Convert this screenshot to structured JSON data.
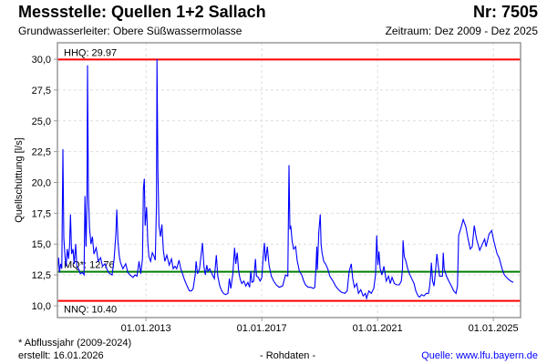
{
  "header": {
    "title": "Messstelle: Quellen 1+2 Sallach",
    "number": "Nr: 7505",
    "aquifer": "Grundwasserleiter:   Obere Süßwassermolasse",
    "period": "Zeitraum: Dez 2009 - Dez 2025"
  },
  "footer": {
    "note": "* Abflussjahr (2009-2024)",
    "created": "erstellt:  16.01.2026",
    "raw": "- Rohdaten -",
    "source": "Quelle: www.lfu.bayern.de"
  },
  "chart_data": {
    "type": "line",
    "title": "Messstelle: Quellen 1+2 Sallach",
    "xlabel": "",
    "ylabel": "Quellschüttung [l/s]",
    "xlim": [
      2009.94,
      2025.94
    ],
    "ylim": [
      9.04,
      31.33
    ],
    "grid": true,
    "x_ticks": [
      {
        "value": 2013.0,
        "label": "01.01.2013"
      },
      {
        "value": 2017.0,
        "label": "01.01.2017"
      },
      {
        "value": 2021.0,
        "label": "01.01.2021"
      },
      {
        "value": 2025.0,
        "label": "01.01.2025"
      }
    ],
    "y_ticks": [
      {
        "value": 10,
        "label": "10,0"
      },
      {
        "value": 12.5,
        "label": "12,5"
      },
      {
        "value": 15,
        "label": "15,0"
      },
      {
        "value": 17.5,
        "label": "17,5"
      },
      {
        "value": 20,
        "label": "20,0"
      },
      {
        "value": 22.5,
        "label": "22,5"
      },
      {
        "value": 25,
        "label": "25,0"
      },
      {
        "value": 27.5,
        "label": "27,5"
      },
      {
        "value": 30,
        "label": "30,0"
      }
    ],
    "reference_lines": [
      {
        "name": "HHQ",
        "label": "HHQ: 29.97",
        "value": 29.97,
        "color": "#ff0000"
      },
      {
        "name": "MQ",
        "label": "MQ*: 12.76",
        "value": 12.76,
        "color": "#008000"
      },
      {
        "name": "NNQ",
        "label": "NNQ: 10.40",
        "value": 10.4,
        "color": "#ff0000"
      }
    ],
    "series": [
      {
        "name": "Quellschüttung",
        "color": "#0000ff",
        "points": [
          [
            2009.94,
            13.0
          ],
          [
            2009.98,
            13.9
          ],
          [
            2010.01,
            12.7
          ],
          [
            2010.05,
            13.4
          ],
          [
            2010.09,
            13.0
          ],
          [
            2010.13,
            22.7
          ],
          [
            2010.16,
            15.5
          ],
          [
            2010.2,
            14.0
          ],
          [
            2010.24,
            13.2
          ],
          [
            2010.28,
            14.6
          ],
          [
            2010.32,
            13.8
          ],
          [
            2010.36,
            14.8
          ],
          [
            2010.39,
            17.4
          ],
          [
            2010.43,
            14.2
          ],
          [
            2010.48,
            14.6
          ],
          [
            2010.52,
            13.4
          ],
          [
            2010.57,
            15.0
          ],
          [
            2010.61,
            13.2
          ],
          [
            2010.67,
            13.0
          ],
          [
            2010.73,
            12.6
          ],
          [
            2010.8,
            12.7
          ],
          [
            2010.86,
            12.5
          ],
          [
            2010.89,
            18.9
          ],
          [
            2010.93,
            14.8
          ],
          [
            2010.96,
            18.5
          ],
          [
            2010.98,
            29.5
          ],
          [
            2011.01,
            19.0
          ],
          [
            2011.05,
            16.3
          ],
          [
            2011.1,
            15.0
          ],
          [
            2011.15,
            15.6
          ],
          [
            2011.2,
            14.2
          ],
          [
            2011.28,
            14.7
          ],
          [
            2011.35,
            13.6
          ],
          [
            2011.43,
            13.9
          ],
          [
            2011.5,
            13.2
          ],
          [
            2011.58,
            13.4
          ],
          [
            2011.68,
            12.8
          ],
          [
            2011.75,
            12.6
          ],
          [
            2011.83,
            12.5
          ],
          [
            2011.9,
            13.8
          ],
          [
            2011.96,
            15.8
          ],
          [
            2011.99,
            17.8
          ],
          [
            2012.03,
            15.2
          ],
          [
            2012.08,
            14.0
          ],
          [
            2012.12,
            13.5
          ],
          [
            2012.2,
            13.0
          ],
          [
            2012.3,
            13.4
          ],
          [
            2012.37,
            12.7
          ],
          [
            2012.45,
            12.5
          ],
          [
            2012.55,
            12.3
          ],
          [
            2012.62,
            12.5
          ],
          [
            2012.69,
            12.4
          ],
          [
            2012.76,
            13.6
          ],
          [
            2012.82,
            12.6
          ],
          [
            2012.88,
            13.8
          ],
          [
            2012.91,
            19.5
          ],
          [
            2012.94,
            20.3
          ],
          [
            2012.97,
            16.5
          ],
          [
            2013.02,
            18.0
          ],
          [
            2013.06,
            15.2
          ],
          [
            2013.1,
            14.0
          ],
          [
            2013.16,
            13.6
          ],
          [
            2013.22,
            14.3
          ],
          [
            2013.28,
            14.0
          ],
          [
            2013.32,
            13.7
          ],
          [
            2013.36,
            18.0
          ],
          [
            2013.38,
            30.0
          ],
          [
            2013.41,
            21.0
          ],
          [
            2013.45,
            16.5
          ],
          [
            2013.5,
            15.6
          ],
          [
            2013.55,
            16.6
          ],
          [
            2013.6,
            14.5
          ],
          [
            2013.65,
            13.6
          ],
          [
            2013.72,
            14.1
          ],
          [
            2013.8,
            13.3
          ],
          [
            2013.88,
            13.8
          ],
          [
            2013.94,
            13.0
          ],
          [
            2014.0,
            13.2
          ],
          [
            2014.06,
            13.0
          ],
          [
            2014.14,
            13.7
          ],
          [
            2014.2,
            13.0
          ],
          [
            2014.26,
            12.6
          ],
          [
            2014.33,
            12.1
          ],
          [
            2014.42,
            11.6
          ],
          [
            2014.5,
            11.2
          ],
          [
            2014.57,
            11.2
          ],
          [
            2014.63,
            11.4
          ],
          [
            2014.7,
            12.5
          ],
          [
            2014.73,
            13.6
          ],
          [
            2014.78,
            12.6
          ],
          [
            2014.85,
            13.0
          ],
          [
            2014.95,
            15.1
          ],
          [
            2015.0,
            13.2
          ],
          [
            2015.05,
            12.5
          ],
          [
            2015.1,
            13.3
          ],
          [
            2015.14,
            12.8
          ],
          [
            2015.2,
            13.0
          ],
          [
            2015.28,
            12.6
          ],
          [
            2015.36,
            12.2
          ],
          [
            2015.43,
            14.1
          ],
          [
            2015.48,
            12.4
          ],
          [
            2015.55,
            11.6
          ],
          [
            2015.62,
            11.2
          ],
          [
            2015.68,
            11.0
          ],
          [
            2015.75,
            10.9
          ],
          [
            2015.83,
            11.0
          ],
          [
            2015.88,
            12.2
          ],
          [
            2015.93,
            11.4
          ],
          [
            2016.0,
            12.6
          ],
          [
            2016.06,
            14.7
          ],
          [
            2016.1,
            13.4
          ],
          [
            2016.15,
            14.3
          ],
          [
            2016.2,
            12.8
          ],
          [
            2016.25,
            12.2
          ],
          [
            2016.31,
            11.8
          ],
          [
            2016.38,
            12.0
          ],
          [
            2016.45,
            11.6
          ],
          [
            2016.52,
            11.9
          ],
          [
            2016.58,
            11.5
          ],
          [
            2016.62,
            12.8
          ],
          [
            2016.66,
            11.9
          ],
          [
            2016.72,
            12.0
          ],
          [
            2016.78,
            13.8
          ],
          [
            2016.82,
            12.4
          ],
          [
            2016.88,
            12.3
          ],
          [
            2016.94,
            12.0
          ],
          [
            2017.0,
            12.3
          ],
          [
            2017.05,
            14.0
          ],
          [
            2017.09,
            15.1
          ],
          [
            2017.13,
            13.6
          ],
          [
            2017.19,
            14.8
          ],
          [
            2017.25,
            13.3
          ],
          [
            2017.33,
            12.4
          ],
          [
            2017.41,
            12.0
          ],
          [
            2017.5,
            11.7
          ],
          [
            2017.6,
            11.5
          ],
          [
            2017.72,
            11.6
          ],
          [
            2017.82,
            12.5
          ],
          [
            2017.9,
            12.4
          ],
          [
            2017.94,
            21.4
          ],
          [
            2017.97,
            16.2
          ],
          [
            2018.0,
            16.5
          ],
          [
            2018.05,
            15.2
          ],
          [
            2018.1,
            14.6
          ],
          [
            2018.17,
            14.8
          ],
          [
            2018.22,
            13.7
          ],
          [
            2018.3,
            12.8
          ],
          [
            2018.38,
            12.5
          ],
          [
            2018.45,
            12.0
          ],
          [
            2018.51,
            11.7
          ],
          [
            2018.6,
            11.5
          ],
          [
            2018.7,
            11.5
          ],
          [
            2018.78,
            11.4
          ],
          [
            2018.83,
            11.5
          ],
          [
            2018.87,
            13.0
          ],
          [
            2018.9,
            14.8
          ],
          [
            2018.92,
            12.9
          ],
          [
            2018.97,
            16.0
          ],
          [
            2019.02,
            17.4
          ],
          [
            2019.05,
            15.0
          ],
          [
            2019.08,
            14.3
          ],
          [
            2019.14,
            13.6
          ],
          [
            2019.2,
            13.4
          ],
          [
            2019.28,
            13.0
          ],
          [
            2019.35,
            12.4
          ],
          [
            2019.46,
            12.0
          ],
          [
            2019.55,
            11.6
          ],
          [
            2019.65,
            11.3
          ],
          [
            2019.75,
            11.1
          ],
          [
            2019.87,
            11.0
          ],
          [
            2019.95,
            11.2
          ],
          [
            2020.02,
            12.8
          ],
          [
            2020.09,
            13.4
          ],
          [
            2020.14,
            12.2
          ],
          [
            2020.2,
            11.5
          ],
          [
            2020.28,
            11.8
          ],
          [
            2020.34,
            11.0
          ],
          [
            2020.42,
            11.3
          ],
          [
            2020.5,
            10.8
          ],
          [
            2020.58,
            11.0
          ],
          [
            2020.62,
            10.6
          ],
          [
            2020.7,
            11.2
          ],
          [
            2020.78,
            11.0
          ],
          [
            2020.87,
            11.4
          ],
          [
            2020.93,
            12.5
          ],
          [
            2020.97,
            15.7
          ],
          [
            2021.01,
            13.3
          ],
          [
            2021.05,
            14.4
          ],
          [
            2021.09,
            13.0
          ],
          [
            2021.15,
            12.5
          ],
          [
            2021.22,
            13.2
          ],
          [
            2021.3,
            12.0
          ],
          [
            2021.38,
            12.4
          ],
          [
            2021.44,
            11.8
          ],
          [
            2021.5,
            12.3
          ],
          [
            2021.58,
            11.8
          ],
          [
            2021.66,
            11.7
          ],
          [
            2021.75,
            11.7
          ],
          [
            2021.82,
            12.0
          ],
          [
            2021.86,
            13.0
          ],
          [
            2021.88,
            15.3
          ],
          [
            2021.92,
            14.0
          ],
          [
            2021.98,
            13.6
          ],
          [
            2022.04,
            13.0
          ],
          [
            2022.1,
            12.6
          ],
          [
            2022.18,
            12.2
          ],
          [
            2022.26,
            11.8
          ],
          [
            2022.32,
            11.2
          ],
          [
            2022.4,
            10.8
          ],
          [
            2022.45,
            10.7
          ],
          [
            2022.52,
            10.9
          ],
          [
            2022.6,
            10.8
          ],
          [
            2022.68,
            11.0
          ],
          [
            2022.76,
            11.0
          ],
          [
            2022.8,
            11.6
          ],
          [
            2022.83,
            12.4
          ],
          [
            2022.86,
            13.5
          ],
          [
            2022.9,
            12.0
          ],
          [
            2022.95,
            11.6
          ],
          [
            2023.0,
            12.8
          ],
          [
            2023.05,
            14.2
          ],
          [
            2023.1,
            13.2
          ],
          [
            2023.14,
            12.4
          ],
          [
            2023.2,
            12.4
          ],
          [
            2023.24,
            12.4
          ],
          [
            2023.27,
            14.3
          ],
          [
            2023.3,
            13.0
          ],
          [
            2023.38,
            12.4
          ],
          [
            2023.46,
            12.0
          ],
          [
            2023.55,
            11.6
          ],
          [
            2023.63,
            11.2
          ],
          [
            2023.71,
            11.0
          ],
          [
            2023.76,
            11.6
          ],
          [
            2023.8,
            15.7
          ],
          [
            2023.88,
            16.3
          ],
          [
            2023.96,
            17.0
          ],
          [
            2024.05,
            16.4
          ],
          [
            2024.12,
            15.5
          ],
          [
            2024.2,
            14.6
          ],
          [
            2024.27,
            14.8
          ],
          [
            2024.34,
            16.5
          ],
          [
            2024.42,
            15.4
          ],
          [
            2024.53,
            14.5
          ],
          [
            2024.62,
            15.0
          ],
          [
            2024.7,
            15.4
          ],
          [
            2024.75,
            14.8
          ],
          [
            2024.85,
            15.8
          ],
          [
            2024.94,
            16.1
          ],
          [
            2025.02,
            15.2
          ],
          [
            2025.13,
            14.2
          ],
          [
            2025.2,
            13.9
          ],
          [
            2025.3,
            13.0
          ],
          [
            2025.38,
            12.5
          ],
          [
            2025.5,
            12.2
          ],
          [
            2025.6,
            12.0
          ],
          [
            2025.69,
            11.9
          ]
        ]
      }
    ]
  }
}
